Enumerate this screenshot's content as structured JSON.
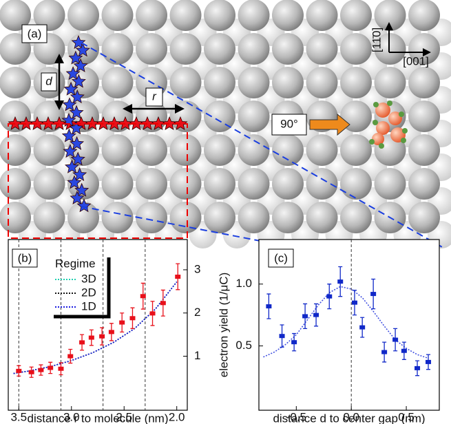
{
  "diagram": {
    "panel_label": "(a)",
    "d_label": "d",
    "r_label": "r",
    "rotation_label": "90°",
    "axis_up_label": "[11̄0]",
    "axis_right_label": "[001]"
  },
  "chart_data": [
    {
      "type": "scatter",
      "panel_label": "(b)",
      "xlabel": "distance r to molecule (nm)",
      "xlim": [
        3.6,
        1.9
      ],
      "xticks": [
        3.5,
        {
          "value": 3,
          "label": "3.0"
        },
        2.5,
        {
          "value": 2,
          "label": "2.0"
        }
      ],
      "ylim": [
        -0.25,
        3.7
      ],
      "yticks": [
        1,
        2,
        3
      ],
      "vlines": [
        3.5,
        3.1,
        2.7,
        2.3
      ],
      "x": [
        3.5,
        3.38,
        3.29,
        3.2,
        3.1,
        3.01,
        2.9,
        2.81,
        2.71,
        2.62,
        2.52,
        2.42,
        2.32,
        2.23,
        2.13,
        1.99
      ],
      "values": [
        0.66,
        0.63,
        0.68,
        0.73,
        0.71,
        1.0,
        1.32,
        1.43,
        1.46,
        1.56,
        1.78,
        1.88,
        2.39,
        1.99,
        2.23,
        2.84
      ],
      "errors": [
        0.12,
        0.12,
        0.12,
        0.13,
        0.14,
        0.16,
        0.18,
        0.18,
        0.2,
        0.2,
        0.22,
        0.24,
        0.3,
        0.28,
        0.3,
        0.3
      ],
      "color": "#e8101a",
      "fits": {
        "legend_title": "Regime",
        "x": [
          3.55,
          3.4,
          3.2,
          3.0,
          2.8,
          2.6,
          2.4,
          2.2,
          2.0
        ],
        "series": [
          {
            "name": "3D",
            "color": "#1fcfb0",
            "values": [
              0.6,
              0.66,
              0.76,
              0.9,
              1.08,
              1.32,
              1.64,
              2.1,
              2.72
            ]
          },
          {
            "name": "2D",
            "color": "#111111",
            "values": [
              0.6,
              0.66,
              0.76,
              0.9,
              1.08,
              1.32,
              1.64,
              2.1,
              2.72
            ]
          },
          {
            "name": "1D",
            "color": "#1a1ae0",
            "values": [
              0.6,
              0.66,
              0.76,
              0.9,
              1.08,
              1.32,
              1.64,
              2.1,
              2.72
            ]
          }
        ]
      }
    },
    {
      "type": "scatter",
      "panel_label": "(c)",
      "xlabel": "distance d to center gap (nm)",
      "ylabel": "electron yield (1/μC)",
      "xlim": [
        -0.84,
        0.8
      ],
      "xticks": [
        -0.5,
        {
          "value": 0,
          "label": "0.0"
        },
        0.5
      ],
      "ylim": [
        -0.02,
        1.36
      ],
      "yticks": [
        0.5,
        {
          "value": 1,
          "label": "1.0"
        }
      ],
      "vlines": [
        0
      ],
      "x": [
        -0.75,
        -0.63,
        -0.52,
        -0.42,
        -0.32,
        -0.2,
        -0.1,
        0.03,
        0.1,
        0.2,
        0.3,
        0.4,
        0.48,
        0.6,
        0.7
      ],
      "values": [
        0.82,
        0.58,
        0.53,
        0.74,
        0.75,
        0.9,
        1.02,
        0.85,
        0.65,
        0.92,
        0.45,
        0.55,
        0.46,
        0.32,
        0.37
      ],
      "errors": [
        0.1,
        0.09,
        0.07,
        0.1,
        0.09,
        0.1,
        0.12,
        0.1,
        0.08,
        0.12,
        0.08,
        0.09,
        0.07,
        0.06,
        0.06
      ],
      "color": "#1028c8",
      "fits": {
        "x": [
          -0.8,
          -0.7,
          -0.6,
          -0.5,
          -0.4,
          -0.3,
          -0.2,
          -0.1,
          0.0,
          0.1,
          0.2,
          0.3,
          0.4,
          0.5,
          0.6,
          0.7
        ],
        "series": [
          {
            "color": "#4050e0",
            "values": [
              0.41,
              0.45,
              0.51,
              0.59,
              0.71,
              0.83,
              0.93,
              0.98,
              0.96,
              0.89,
              0.78,
              0.66,
              0.55,
              0.48,
              0.43,
              0.4
            ]
          }
        ]
      }
    }
  ]
}
